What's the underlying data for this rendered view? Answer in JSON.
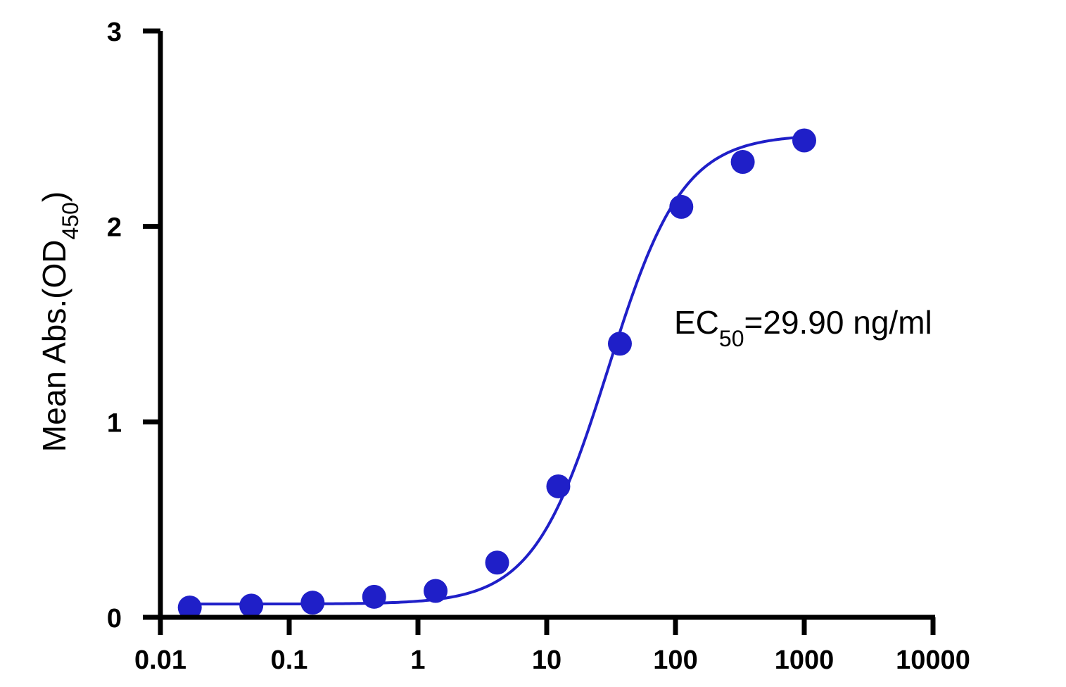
{
  "chart_data": {
    "type": "scatter",
    "ylabel": "Mean Abs.(OD",
    "ylabel_sub": "450",
    "ylabel_suffix": ")",
    "x_scale": "log",
    "xlim": [
      0.01,
      10000
    ],
    "ylim": [
      0,
      3
    ],
    "x_ticks": [
      0.01,
      0.1,
      1,
      10,
      100,
      1000,
      10000
    ],
    "x_tick_labels": [
      "0.01",
      "0.1",
      "1",
      "10",
      "100",
      "1000",
      "10000"
    ],
    "y_ticks": [
      0,
      1,
      2,
      3
    ],
    "y_tick_labels": [
      "0",
      "1",
      "2",
      "3"
    ],
    "grid": false,
    "colors": {
      "series": "#1f1fc8",
      "axis": "#000000"
    },
    "series": [
      {
        "x": [
          0.0169,
          0.0508,
          0.152,
          0.457,
          1.37,
          4.12,
          12.3,
          37.0,
          111,
          333,
          1000
        ],
        "y": [
          0.05,
          0.06,
          0.075,
          0.105,
          0.135,
          0.28,
          0.67,
          1.4,
          2.1,
          2.33,
          2.44
        ]
      }
    ],
    "fit": {
      "model": "4PL",
      "bottom": 0.068,
      "top": 2.47,
      "ec50": 29.9,
      "hill": 1.5
    },
    "annotation": {
      "prefix": "EC",
      "sub": "50",
      "suffix": "=29.90 ng/ml"
    }
  }
}
